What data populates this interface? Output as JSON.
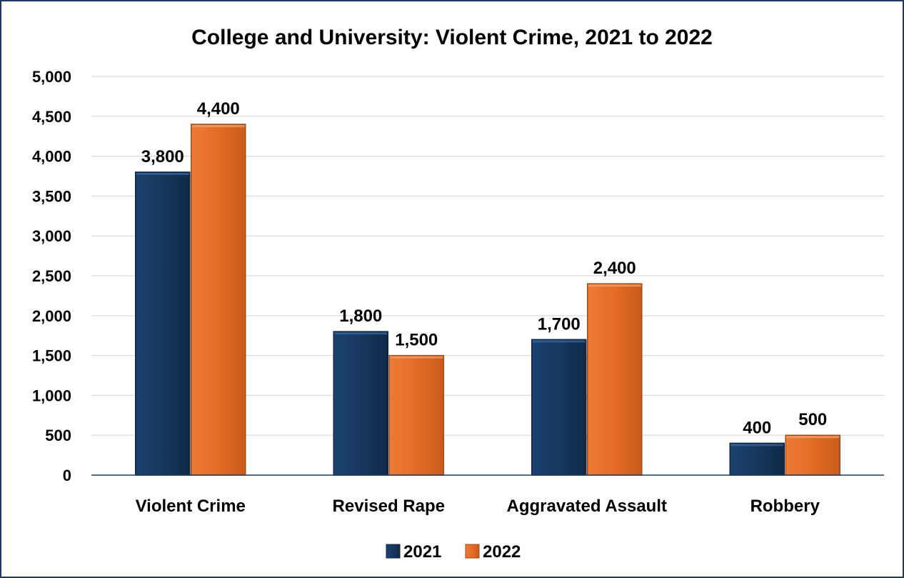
{
  "chart_data": {
    "type": "bar",
    "title": "College and University: Violent Crime, 2021 to 2022",
    "xlabel": "",
    "ylabel": "",
    "categories": [
      "Violent Crime",
      "Revised Rape",
      "Aggravated Assault",
      "Robbery"
    ],
    "series": [
      {
        "name": "2021",
        "values": [
          3800,
          1800,
          1700,
          400
        ],
        "labels": [
          "3,800",
          "1,800",
          "1,700",
          "400"
        ],
        "color": "#17375e"
      },
      {
        "name": "2022",
        "values": [
          4400,
          1500,
          2400,
          500
        ],
        "labels": [
          "4,400",
          "1,500",
          "2,400",
          "500"
        ],
        "color": "#e46c25"
      }
    ],
    "ylim": [
      0,
      5000
    ],
    "yticks": [
      0,
      500,
      1000,
      1500,
      2000,
      2500,
      3000,
      3500,
      4000,
      4500,
      5000
    ],
    "ytick_labels": [
      "0",
      "500",
      "1,000",
      "1,500",
      "2,000",
      "2,500",
      "3,000",
      "3,500",
      "4,000",
      "4,500",
      "5,000"
    ],
    "grid": true,
    "legend_position": "bottom"
  }
}
